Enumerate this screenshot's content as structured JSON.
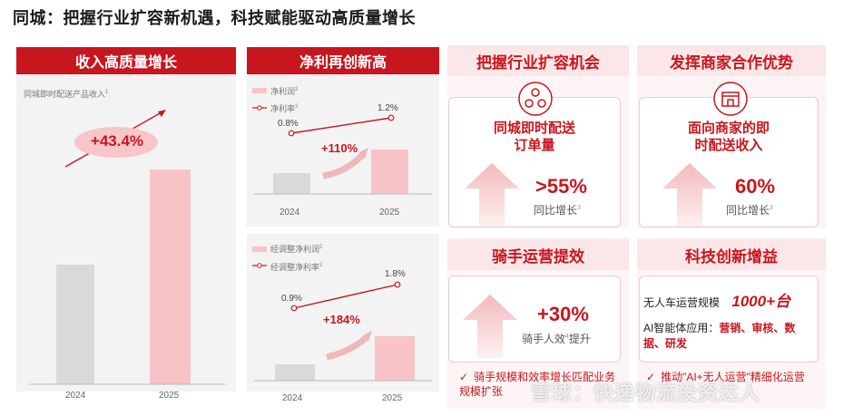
{
  "title": "同城：把握行业扩容新机遇，科技赋能驱动高质量增长",
  "panel1": {
    "header": "收入高质量增长",
    "legend": "同城即时配送产品收入",
    "legend_sup": "1",
    "growth": "+43.4%"
  },
  "panel2": {
    "header": "净利再创新高",
    "legend_bar": "净利润",
    "legend_bar_sup": "2",
    "legend_line": "净利率",
    "legend_line_sup": "2",
    "rate_2024": "0.8%",
    "rate_2025": "1.2%",
    "growth": "+110%"
  },
  "panel3": {
    "legend_bar": "经调整净利润",
    "legend_bar_sup": "2",
    "legend_line": "经调整净利率",
    "legend_line_sup": "2",
    "rate_2024": "0.9%",
    "rate_2025": "1.8%",
    "growth": "+184%"
  },
  "opportunity": {
    "header": "把握行业扩容机会",
    "card_title_line1": "同城即时配送",
    "card_title_line2": "订单量",
    "value": ">55%",
    "sub": "同比增长",
    "sub_sup": "3"
  },
  "merchant": {
    "header": "发挥商家合作优势",
    "card_title_line1": "面向商家的即",
    "card_title_line2": "时配送收入",
    "value": "60%",
    "sub": "同比增长",
    "sub_sup": "3"
  },
  "rider": {
    "header": "骑手运营提效",
    "value": "+30%",
    "sub": "骑手人效",
    "sub_sup": "4",
    "sub_tail": "提升",
    "bullet": "骑手规模和效率增长匹配业务规模扩张"
  },
  "tech": {
    "header": "科技创新增益",
    "line1_label": "无人车运营规模",
    "line1_value": "1000+台",
    "line2_label": "AI智能体应用：",
    "line2_value_a": "营销、审核、数",
    "line2_value_b": "据、研发",
    "bullet": "推动\"AI+无人运营\"精细化运营"
  },
  "watermark": "雪球：快递物流投资达人",
  "chart_data": [
    {
      "type": "bar",
      "categories": [
        "2024",
        "2025"
      ],
      "series": [
        {
          "name": "同城即时配送产品收入",
          "values": [
            100,
            143.4
          ]
        }
      ],
      "title": "收入高质量增长",
      "annotations": [
        "+43.4%"
      ]
    },
    {
      "type": "bar",
      "categories": [
        "2024",
        "2025"
      ],
      "series": [
        {
          "name": "净利润",
          "values": [
            100,
            210
          ]
        },
        {
          "name": "净利率",
          "values": [
            0.8,
            1.2
          ]
        }
      ],
      "title": "净利再创新高",
      "annotations": [
        "+110%"
      ]
    },
    {
      "type": "bar",
      "categories": [
        "2024",
        "2025"
      ],
      "series": [
        {
          "name": "经调整净利润",
          "values": [
            100,
            284
          ]
        },
        {
          "name": "经调整净利率",
          "values": [
            0.9,
            1.8
          ]
        }
      ]
    }
  ],
  "colors": {
    "red": "#c8161e",
    "pink_bar": "#f7c3c6",
    "gray_bar": "#d9d9d9",
    "pink_header": "#fbe7e8"
  }
}
